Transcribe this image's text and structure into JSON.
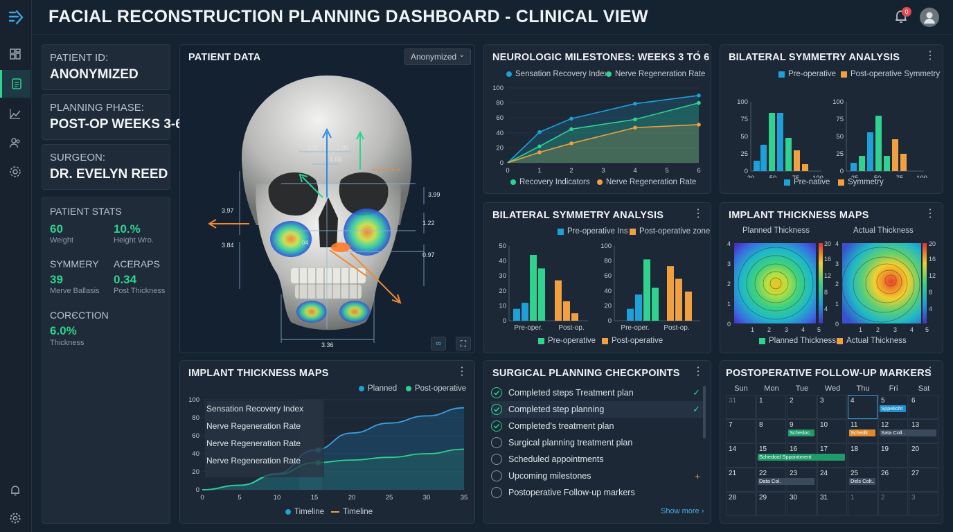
{
  "header": {
    "title": "FACIAL RECONSTRUCTION PLANNING DASHBOARD - CLINICAL VIEW",
    "notifications": "0"
  },
  "sidebar": {
    "items": [
      "dashboard-icon",
      "clipboard-icon",
      "chart-icon",
      "users-icon",
      "settings-gear-icon",
      "bell-icon",
      "settings-icon"
    ]
  },
  "info": {
    "patient": {
      "label": "PATIENT ID:",
      "value": "ANONYMIZED"
    },
    "phase": {
      "label": "PLANNING PHASE:",
      "value": "POST-OP WEEKS 3-6"
    },
    "surgeon": {
      "label": "SURGEON:",
      "value": "DR. EVELYN REED"
    }
  },
  "stats": {
    "title": "PATIENT STATS",
    "a_val": "60",
    "a_sub": "Weight",
    "b_val": "10.%",
    "b_sub": "Height Wro.",
    "c_head": "SYMMERY",
    "c_val": "39",
    "c_sub": "Merve Ballasis",
    "d_head": "ACERAPS",
    "d_val": "0.34",
    "d_sub": "Post Thickness",
    "e_head": "CORЄCTION",
    "e_val": "6.0%",
    "e_sub": "Thickness"
  },
  "patient_data": {
    "title": "PATIENT DATA",
    "dropdown": "Anonymized",
    "measurements": {
      "m1": "3.0f",
      "m2": "2.86",
      "m3": "1.06",
      "m4": "3.99",
      "m5": "3.97",
      "m6": "1.22",
      "m7": "3.84",
      "m8": "0.97",
      "m9": "3.36",
      "m10": "04"
    },
    "btn_link": "∞",
    "btn_expand": "⛶"
  },
  "neuro": {
    "title": "NEUROLOGIC MILESTONES: WEEKS 3 TO 6",
    "legend_top": [
      "Sensation Recovery Index",
      "Nerve Regeneration Rate"
    ],
    "legend_bottom": [
      "Recovery Indicators",
      "Nerve Regeneration Rate"
    ],
    "y_ticks": [
      "0",
      "20",
      "40",
      "60",
      "80",
      "100"
    ],
    "x_ticks": [
      "0",
      "1",
      "2",
      "3",
      "4",
      "5",
      "6"
    ]
  },
  "sym1": {
    "title": "BILATERAL SYMMETRY ANALYSIS",
    "legend_top": [
      "Pre-operative",
      "Post-operative Symmetry"
    ],
    "legend_bottom": [
      "Pre-native",
      "Symmetry"
    ],
    "left_y": [
      "0",
      "25",
      "50",
      "75",
      "100"
    ],
    "left_x": [
      "20",
      "50",
      "75",
      "100"
    ],
    "right_y": [
      "0",
      "25",
      "50",
      "75",
      "100"
    ],
    "right_x": [
      "25",
      "50",
      "75",
      "100"
    ]
  },
  "sym2": {
    "title": "BILATERAL SYMMETRY ANALYSIS",
    "legend_top": [
      "Pre-operative Ins",
      "Post-operative zone"
    ],
    "legend_bottom": [
      "Pre-operative",
      "Post-operative"
    ],
    "left_y": [
      "0",
      "10",
      "20",
      "30",
      "40",
      "50"
    ],
    "right_y": [
      "0",
      "20",
      "40",
      "60",
      "80",
      "100"
    ],
    "cats": [
      "Pre-oper.",
      "Post-op.",
      "Pre-oper.",
      "Post-op."
    ]
  },
  "thick_maps": {
    "title": "IMPLANT THICKNESS MAPS",
    "planned": "Planned Thickness",
    "actual": "Actual Thickness",
    "y_ticks": [
      "0",
      "1",
      "2",
      "3",
      "4"
    ],
    "x_ticks": [
      "1",
      "2",
      "3",
      "4",
      "5"
    ],
    "cbar": [
      "4",
      "8",
      "12",
      "16",
      "20"
    ],
    "legend": [
      "Planned Thickness",
      "Actual Thickness"
    ]
  },
  "thick_line": {
    "title": "IMPLANT THICKNESS MAPS",
    "legend_top": [
      "Planned",
      "Post-operative"
    ],
    "legend_bottom": [
      "Timeline",
      "Timeline"
    ],
    "rows": [
      "Sensation Recovery Index",
      "Nerve Regeneration Rate",
      "Nerve Regeneration Rate",
      "Nerve Regeneration Rate"
    ],
    "y_ticks": [
      "0",
      "20",
      "40",
      "60",
      "80",
      "100"
    ],
    "x_ticks": [
      "0",
      "5",
      "10",
      "15",
      "20",
      "25",
      "30",
      "35"
    ]
  },
  "checkpoints": {
    "title": "SURGICAL PLANNING CHECKPOINTS",
    "items": [
      {
        "label": "Completed steps Treatment plan",
        "done": true,
        "mark": "✓"
      },
      {
        "label": "Completed step planning",
        "done": true,
        "mark": "✓"
      },
      {
        "label": "Completed's treatment plan",
        "done": true,
        "mark": ""
      },
      {
        "label": "Surgical planning treatment plan",
        "done": false,
        "mark": ""
      },
      {
        "label": "Scheduled appointments",
        "done": false,
        "mark": ""
      },
      {
        "label": "Upcoming milestones",
        "done": false,
        "mark": "+"
      },
      {
        "label": "Postoperative Follow-up markers",
        "done": false,
        "mark": ""
      }
    ],
    "show_more": "Show more ›"
  },
  "calendar": {
    "title": "POSTOPERATIVE FOLLOW-UP MARKERS",
    "days": [
      "Sun",
      "Mon",
      "Tue",
      "Wed",
      "Thu",
      "Fri",
      "Sat"
    ],
    "weeks": [
      [
        "31",
        "1",
        "2",
        "3",
        "4",
        "5",
        "6"
      ],
      [
        "7",
        "8",
        "9",
        "10",
        "11",
        "12",
        "13"
      ],
      [
        "14",
        "15",
        "16",
        "17",
        "18",
        "19",
        "20"
      ],
      [
        "21",
        "22",
        "23",
        "24",
        "25",
        "26",
        "27"
      ],
      [
        "28",
        "29",
        "30",
        "31",
        "1",
        "2",
        "3"
      ]
    ],
    "events": {
      "e1": "Sppelioht",
      "e2": "Schedoc.",
      "e3": "Schedlt.",
      "e4": "Sata Coll..",
      "e5": "Schedoid Sppointment",
      "e6": "Data Col.",
      "e7": "Dels Colt.."
    }
  },
  "chart_data": [
    {
      "type": "line",
      "title": "NEUROLOGIC MILESTONES: WEEKS 3 TO 6",
      "x": [
        0,
        1,
        2,
        4,
        6
      ],
      "ylim": [
        0,
        100
      ],
      "series": [
        {
          "name": "Sensation Recovery Index",
          "values": [
            0,
            41,
            59,
            79,
            90
          ]
        },
        {
          "name": "Nerve Regeneration Rate",
          "values": [
            0,
            22,
            45,
            58,
            80
          ]
        },
        {
          "name": "Nerve Regeneration Rate",
          "values": [
            0,
            14,
            26,
            47,
            51
          ]
        }
      ]
    },
    {
      "type": "bar",
      "title": "BILATERAL SYMMETRY ANALYSIS",
      "ylim": [
        0,
        100
      ],
      "left": [
        {
          "v": 15,
          "c": "#1fa0d8"
        },
        {
          "v": 38,
          "c": "#1fa0d8"
        },
        {
          "v": 84,
          "c": "#2fd28f"
        },
        {
          "v": 84,
          "c": "#1fa0d8"
        },
        {
          "v": 48,
          "c": "#2fd28f"
        },
        {
          "v": 30,
          "c": "#f0a040"
        },
        {
          "v": 10,
          "c": "#f0a040"
        }
      ],
      "right": [
        {
          "v": 12,
          "c": "#1fa0d8"
        },
        {
          "v": 22,
          "c": "#2fd28f"
        },
        {
          "v": 56,
          "c": "#1fa0d8"
        },
        {
          "v": 80,
          "c": "#2fd28f"
        },
        {
          "v": 22,
          "c": "#2fd28f"
        },
        {
          "v": 46,
          "c": "#f0a040"
        },
        {
          "v": 25,
          "c": "#f0a040"
        }
      ]
    },
    {
      "type": "bar",
      "title": "BILATERAL SYMMETRY ANALYSIS",
      "left": [
        {
          "v": 8,
          "c": "#1fa0d8"
        },
        {
          "v": 12,
          "c": "#1fa0d8"
        },
        {
          "v": 44,
          "c": "#2fd28f"
        },
        {
          "v": 35,
          "c": "#2fd28f"
        },
        {
          "v": 27,
          "c": "#f0a040"
        },
        {
          "v": 13,
          "c": "#f0a040"
        },
        {
          "v": 5,
          "c": "#f0a040"
        }
      ],
      "right": [
        {
          "v": 16,
          "c": "#1fa0d8"
        },
        {
          "v": 35,
          "c": "#1fa0d8"
        },
        {
          "v": 82,
          "c": "#2fd28f"
        },
        {
          "v": 44,
          "c": "#2fd28f"
        },
        {
          "v": 73,
          "c": "#f0a040"
        },
        {
          "v": 56,
          "c": "#f0a040"
        },
        {
          "v": 39,
          "c": "#f0a040"
        }
      ]
    },
    {
      "type": "line",
      "title": "IMPLANT THICKNESS MAPS",
      "x": [
        0,
        5,
        10,
        15,
        20,
        25,
        30,
        35
      ],
      "ylim": [
        0,
        100
      ],
      "series": [
        {
          "name": "Planned",
          "values": [
            0,
            5,
            18,
            44,
            63,
            74,
            82,
            91
          ]
        },
        {
          "name": "Post-operative",
          "values": [
            0,
            5,
            17,
            30,
            33,
            36,
            40,
            45
          ]
        }
      ]
    }
  ]
}
